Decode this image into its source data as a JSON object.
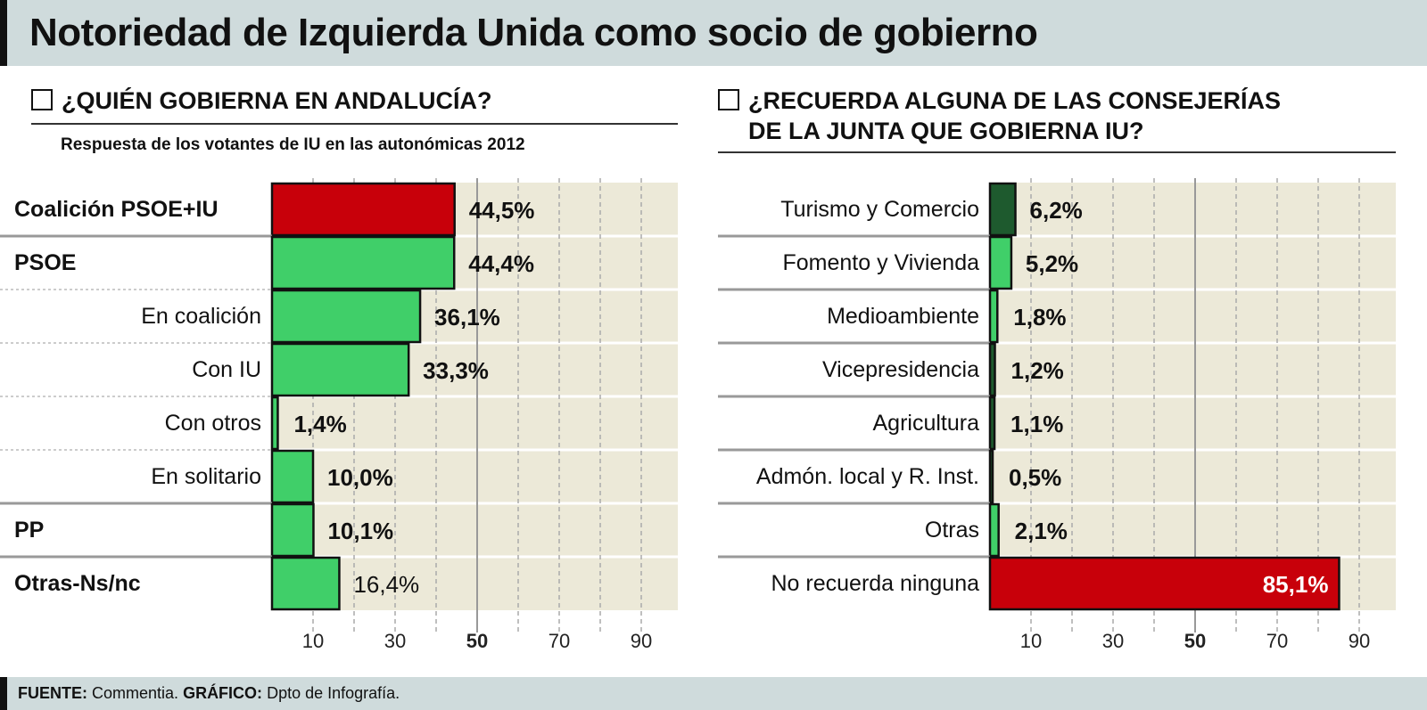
{
  "title": "Notoriedad de Izquierda Unida como socio de gobierno",
  "footer": {
    "source_label": "FUENTE:",
    "source": "Commentia.",
    "graphic_label": "GRÁFICO:",
    "graphic": "Dpto de Infografía."
  },
  "colors": {
    "red": "#c8000a",
    "green": "#40cf69",
    "dark_green": "#1e5a2e",
    "grid_bg": "#ece9d8"
  },
  "chart_data": [
    {
      "type": "bar",
      "orientation": "horizontal",
      "title": "¿QUIÉN GOBIERNA EN ANDALUCÍA?",
      "subtitle": "Respuesta de los votantes de IU en las autonómicas 2012",
      "categories": [
        "Coalición PSOE+IU",
        "PSOE",
        "En coalición",
        "Con IU",
        "Con otros",
        "En solitario",
        "PP",
        "Otras-Ns/nc"
      ],
      "bold_categories": [
        true,
        true,
        false,
        false,
        false,
        false,
        true,
        true
      ],
      "values": [
        44.5,
        44.4,
        36.1,
        33.3,
        1.4,
        10.0,
        10.1,
        16.4
      ],
      "labels": [
        "44,5%",
        "44,4%",
        "36,1%",
        "33,3%",
        "1,4%",
        "10,0%",
        "10,1%",
        "16,4%"
      ],
      "bar_colors": [
        "red",
        "green",
        "green",
        "green",
        "green",
        "green",
        "green",
        "green"
      ],
      "xticks": [
        10,
        30,
        50,
        70,
        90
      ],
      "xlim": [
        0,
        99
      ],
      "grid": true
    },
    {
      "type": "bar",
      "orientation": "horizontal",
      "title": "¿RECUERDA ALGUNA DE LAS CONSEJERÍAS DE LA JUNTA QUE GOBIERNA IU?",
      "title_lines": [
        "¿RECUERDA ALGUNA DE LAS CONSEJERÍAS",
        "DE LA JUNTA QUE GOBIERNA IU?"
      ],
      "categories": [
        "Turismo y Comercio",
        "Fomento y Vivienda",
        "Medioambiente",
        "Vicepresidencia",
        "Agricultura",
        "Admón. local y R. Inst.",
        "Otras",
        "No recuerda ninguna"
      ],
      "values": [
        6.2,
        5.2,
        1.8,
        1.2,
        1.1,
        0.5,
        2.1,
        85.1
      ],
      "labels": [
        "6,2%",
        "5,2%",
        "1,8%",
        "1,2%",
        "1,1%",
        "0,5%",
        "2,1%",
        "85,1%"
      ],
      "bar_colors": [
        "dark_green",
        "green",
        "green",
        "dark_green",
        "dark_green",
        "dark_green",
        "green",
        "red"
      ],
      "xticks": [
        10,
        30,
        50,
        70,
        90
      ],
      "xlim": [
        0,
        99
      ],
      "grid": true
    }
  ]
}
